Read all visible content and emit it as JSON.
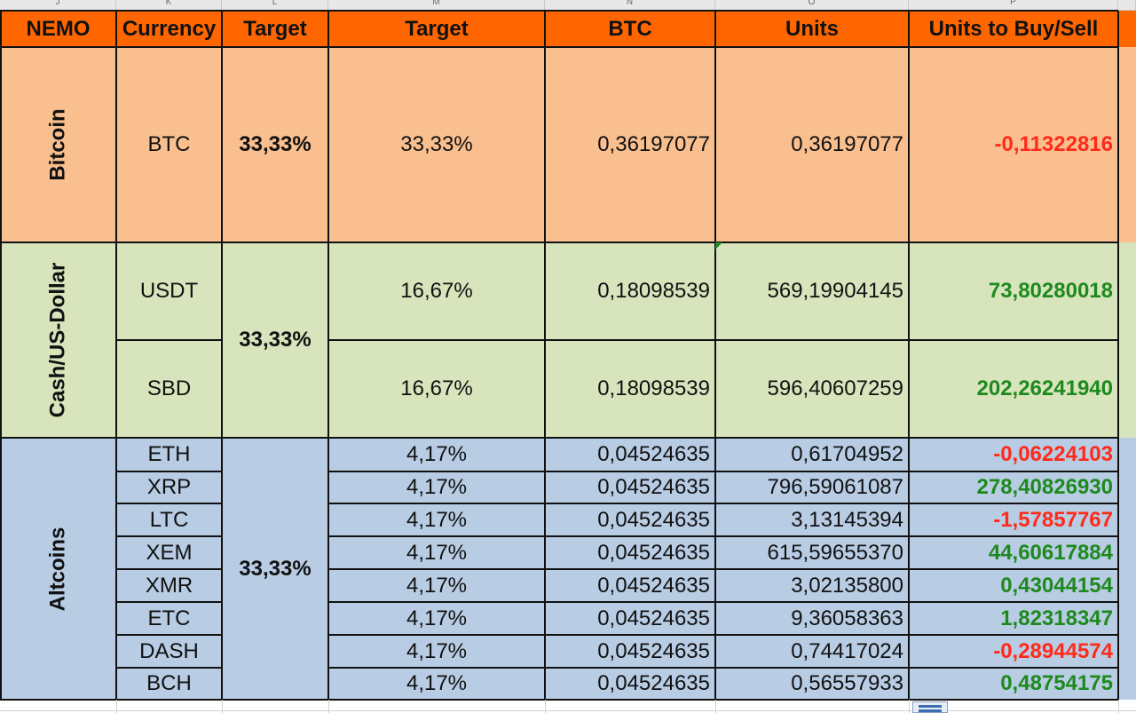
{
  "column_letters": [
    "J",
    "K",
    "L",
    "M",
    "N",
    "O",
    "P"
  ],
  "headers": {
    "nemo": "NEMO",
    "currency": "Currency",
    "target_group": "Target",
    "target": "Target",
    "btc": "BTC",
    "units": "Units",
    "units_buy_sell": "Units to Buy/Sell"
  },
  "groups": {
    "bitcoin": {
      "label": "Bitcoin",
      "target": "33,33%"
    },
    "cash": {
      "label": "Cash/US-Dollar",
      "target": "33,33%"
    },
    "altcoins": {
      "label": "Altcoins",
      "target": "33,33%"
    }
  },
  "rows": [
    {
      "currency": "BTC",
      "target": "33,33%",
      "btc": "0,36197077",
      "units": "0,36197077",
      "buy_sell": "-0,11322816",
      "sign": "neg"
    },
    {
      "currency": "USDT",
      "target": "16,67%",
      "btc": "0,18098539",
      "units": "569,19904145",
      "buy_sell": "73,80280018",
      "sign": "pos"
    },
    {
      "currency": "SBD",
      "target": "16,67%",
      "btc": "0,18098539",
      "units": "596,40607259",
      "buy_sell": "202,26241940",
      "sign": "pos"
    },
    {
      "currency": "ETH",
      "target": "4,17%",
      "btc": "0,04524635",
      "units": "0,61704952",
      "buy_sell": "-0,06224103",
      "sign": "neg"
    },
    {
      "currency": "XRP",
      "target": "4,17%",
      "btc": "0,04524635",
      "units": "796,59061087",
      "buy_sell": "278,40826930",
      "sign": "pos"
    },
    {
      "currency": "LTC",
      "target": "4,17%",
      "btc": "0,04524635",
      "units": "3,13145394",
      "buy_sell": "-1,57857767",
      "sign": "neg"
    },
    {
      "currency": "XEM",
      "target": "4,17%",
      "btc": "0,04524635",
      "units": "615,59655370",
      "buy_sell": "44,60617884",
      "sign": "pos"
    },
    {
      "currency": "XMR",
      "target": "4,17%",
      "btc": "0,04524635",
      "units": "3,02135800",
      "buy_sell": "0,43044154",
      "sign": "pos"
    },
    {
      "currency": "ETC",
      "target": "4,17%",
      "btc": "0,04524635",
      "units": "9,36058363",
      "buy_sell": "1,82318347",
      "sign": "pos"
    },
    {
      "currency": "DASH",
      "target": "4,17%",
      "btc": "0,04524635",
      "units": "0,74417024",
      "buy_sell": "-0,28944574",
      "sign": "neg"
    },
    {
      "currency": "BCH",
      "target": "4,17%",
      "btc": "0,04524635",
      "units": "0,56557933",
      "buy_sell": "0,48754175",
      "sign": "pos"
    }
  ],
  "colors": {
    "header_bg": "#ff6600",
    "bitcoin_bg": "#f9bf8f",
    "cash_bg": "#d8e4bc",
    "altcoins_bg": "#b8cce4",
    "negative": "#ff2a1a",
    "positive": "#1e8a1e"
  },
  "icons": {
    "filter": "autofilter-options-icon",
    "comment_marker": "cell-comment-indicator-icon"
  }
}
